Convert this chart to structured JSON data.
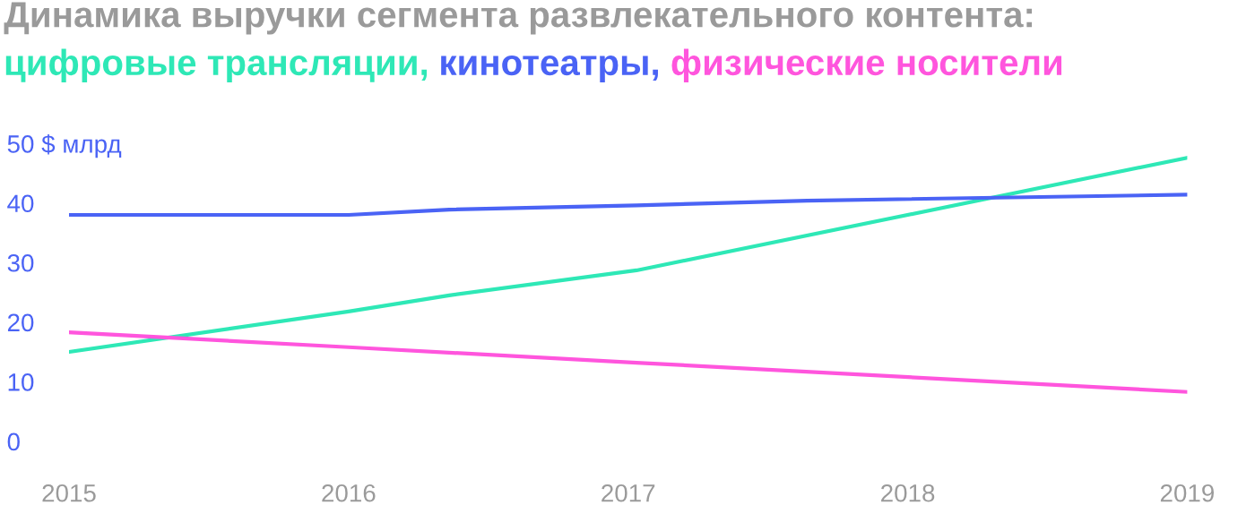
{
  "chart_data": {
    "type": "line",
    "title": "Динамика выручки сегмента развлекательного контента:",
    "series": [
      {
        "name": "цифровые трансляции,",
        "color": "#2ee8b6",
        "x": [
          2015,
          2016,
          2016.36,
          2017.03,
          2019
        ],
        "values": [
          15.0,
          21.8,
          24.5,
          28.7,
          47.6
        ]
      },
      {
        "name": "кинотеатры,",
        "color": "#4a63f5",
        "x": [
          2015,
          2016,
          2016.36,
          2017.03,
          2017.64,
          2019
        ],
        "values": [
          38.0,
          38.0,
          38.9,
          39.6,
          40.4,
          41.4
        ]
      },
      {
        "name": "физические носители",
        "color": "#ff55dd",
        "x": [
          2015,
          2016,
          2017.03,
          2019
        ],
        "values": [
          18.3,
          15.8,
          13.2,
          8.3
        ]
      }
    ],
    "xlim": [
      2015,
      2019
    ],
    "xticks": [
      2015,
      2016,
      2017,
      2018,
      2019
    ],
    "ylim": [
      0,
      50
    ],
    "yticks": [
      0,
      10,
      20,
      30,
      40,
      {
        "value": 50,
        "label": "50 $ млрд"
      }
    ],
    "grid": false,
    "legend": "top",
    "marker": "none",
    "line_style": "solid"
  }
}
